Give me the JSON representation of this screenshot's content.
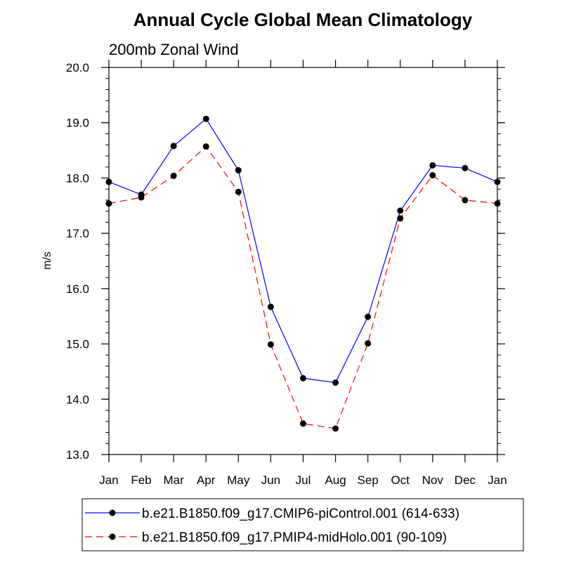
{
  "chart_data": {
    "type": "line",
    "title": "Annual Cycle Global Mean Climatology",
    "subtitle": "200mb Zonal Wind",
    "ylabel": "m/s",
    "xlabel": "",
    "categories": [
      "Jan",
      "Feb",
      "Mar",
      "Apr",
      "May",
      "Jun",
      "Jul",
      "Aug",
      "Sep",
      "Oct",
      "Nov",
      "Dec",
      "Jan"
    ],
    "ylim": [
      13.0,
      20.0
    ],
    "yticks": [
      "13.0",
      "14.0",
      "15.0",
      "16.0",
      "17.0",
      "18.0",
      "19.0",
      "20.0"
    ],
    "grid": false,
    "legend_position": "bottom",
    "series": [
      {
        "name": "b.e21.B1850.f09_g17.CMIP6-piControl.001 (614-633)",
        "color": "#0000ff",
        "line_style": "solid",
        "marker": "filled-circle",
        "values": [
          17.93,
          17.7,
          18.58,
          19.07,
          18.14,
          15.67,
          14.38,
          14.3,
          15.49,
          17.41,
          18.23,
          18.18,
          17.93
        ]
      },
      {
        "name": "b.e21.B1850.f09_g17.PMIP4-midHolo.001 (90-109)",
        "color": "#ff0000",
        "line_style": "dashed",
        "marker": "filled-circle",
        "values": [
          17.54,
          17.65,
          18.04,
          18.57,
          17.75,
          14.99,
          13.56,
          13.47,
          15.01,
          17.27,
          18.05,
          17.6,
          17.54
        ]
      }
    ]
  }
}
